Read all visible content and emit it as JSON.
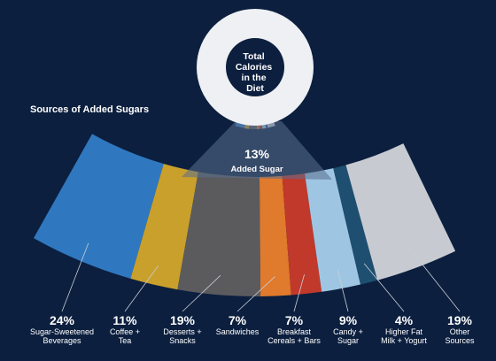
{
  "colors": {
    "background": "#0c1f3f",
    "ring": "#eef0f3",
    "ring_hole": "#0c1f3f",
    "band_overlay": "#5a6e8c"
  },
  "diagram": {
    "section_title": "Sources of Added Sugars",
    "center_label_lines": [
      "Total",
      "Calories",
      "in the",
      "Diet"
    ],
    "added_sugar_pct": "13%",
    "added_sugar_label": "Added Sugar"
  },
  "chart_data": {
    "type": "pie",
    "total_share_of_calories": 13,
    "categories": [
      "Sugar-Sweetened Beverages",
      "Coffee + Tea",
      "Desserts + Snacks",
      "Sandwiches",
      "Breakfast Cereals + Bars",
      "Candy + Sugar",
      "Higher Fat Milk + Yogurt",
      "Other Sources"
    ],
    "values": [
      24,
      11,
      19,
      7,
      7,
      9,
      4,
      19
    ]
  },
  "segments": [
    {
      "pct": "24%",
      "name_lines": [
        "Sugar-Sweetened",
        "Beverages"
      ],
      "color": "#2f78bf"
    },
    {
      "pct": "11%",
      "name_lines": [
        "Coffee +",
        "Tea"
      ],
      "color": "#c9a02b"
    },
    {
      "pct": "19%",
      "name_lines": [
        "Desserts +",
        "Snacks"
      ],
      "color": "#5b5b5e"
    },
    {
      "pct": "7%",
      "name_lines": [
        "Sandwiches"
      ],
      "color": "#e07a2c"
    },
    {
      "pct": "7%",
      "name_lines": [
        "Breakfast",
        "Cereals + Bars"
      ],
      "color": "#c0392b"
    },
    {
      "pct": "9%",
      "name_lines": [
        "Candy +",
        "Sugar"
      ],
      "color": "#9ec6e3"
    },
    {
      "pct": "4%",
      "name_lines": [
        "Higher Fat",
        "Milk + Yogurt"
      ],
      "color": "#1e4f70"
    },
    {
      "pct": "19%",
      "name_lines": [
        "Other",
        "Sources"
      ],
      "color": "#c7cbd1"
    }
  ]
}
